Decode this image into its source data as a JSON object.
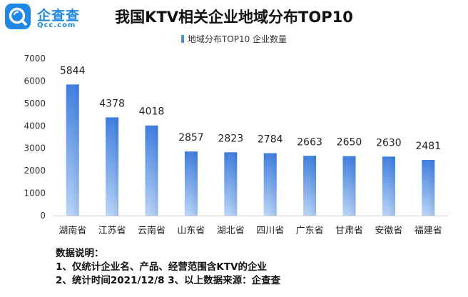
{
  "brand": {
    "name": "企查查",
    "domain": "Qcc.com",
    "color": "#1f87e5"
  },
  "title": "我国KTV相关企业地域分布TOP10",
  "legend_label": "地域分布TOP10 企业数量",
  "notes": {
    "heading": "数据说明：",
    "line1": "1、仅统计企业名、产品、经营范围含KTV的企业",
    "line2": "2、统计时间2021/12/8   3、以上数据来源：企查查"
  },
  "chart_data": {
    "type": "bar",
    "title": "我国KTV相关企业地域分布TOP10",
    "categories": [
      "湖南省",
      "江苏省",
      "云南省",
      "山东省",
      "湖北省",
      "四川省",
      "广东省",
      "甘肃省",
      "安徽省",
      "福建省"
    ],
    "series": [
      {
        "name": "地域分布TOP10 企业数量",
        "values": [
          5844,
          4378,
          4018,
          2857,
          2823,
          2784,
          2663,
          2650,
          2630,
          2481
        ]
      }
    ],
    "yticks": [
      0,
      1000,
      2000,
      3000,
      4000,
      5000,
      6000,
      7000
    ],
    "ylim": [
      0,
      7000
    ],
    "xlabel": "",
    "ylabel": "",
    "grid": false,
    "legend_position": "top-center",
    "bar_color_top": "#3a7be0",
    "bar_color_bottom": "#b9d5f7"
  }
}
